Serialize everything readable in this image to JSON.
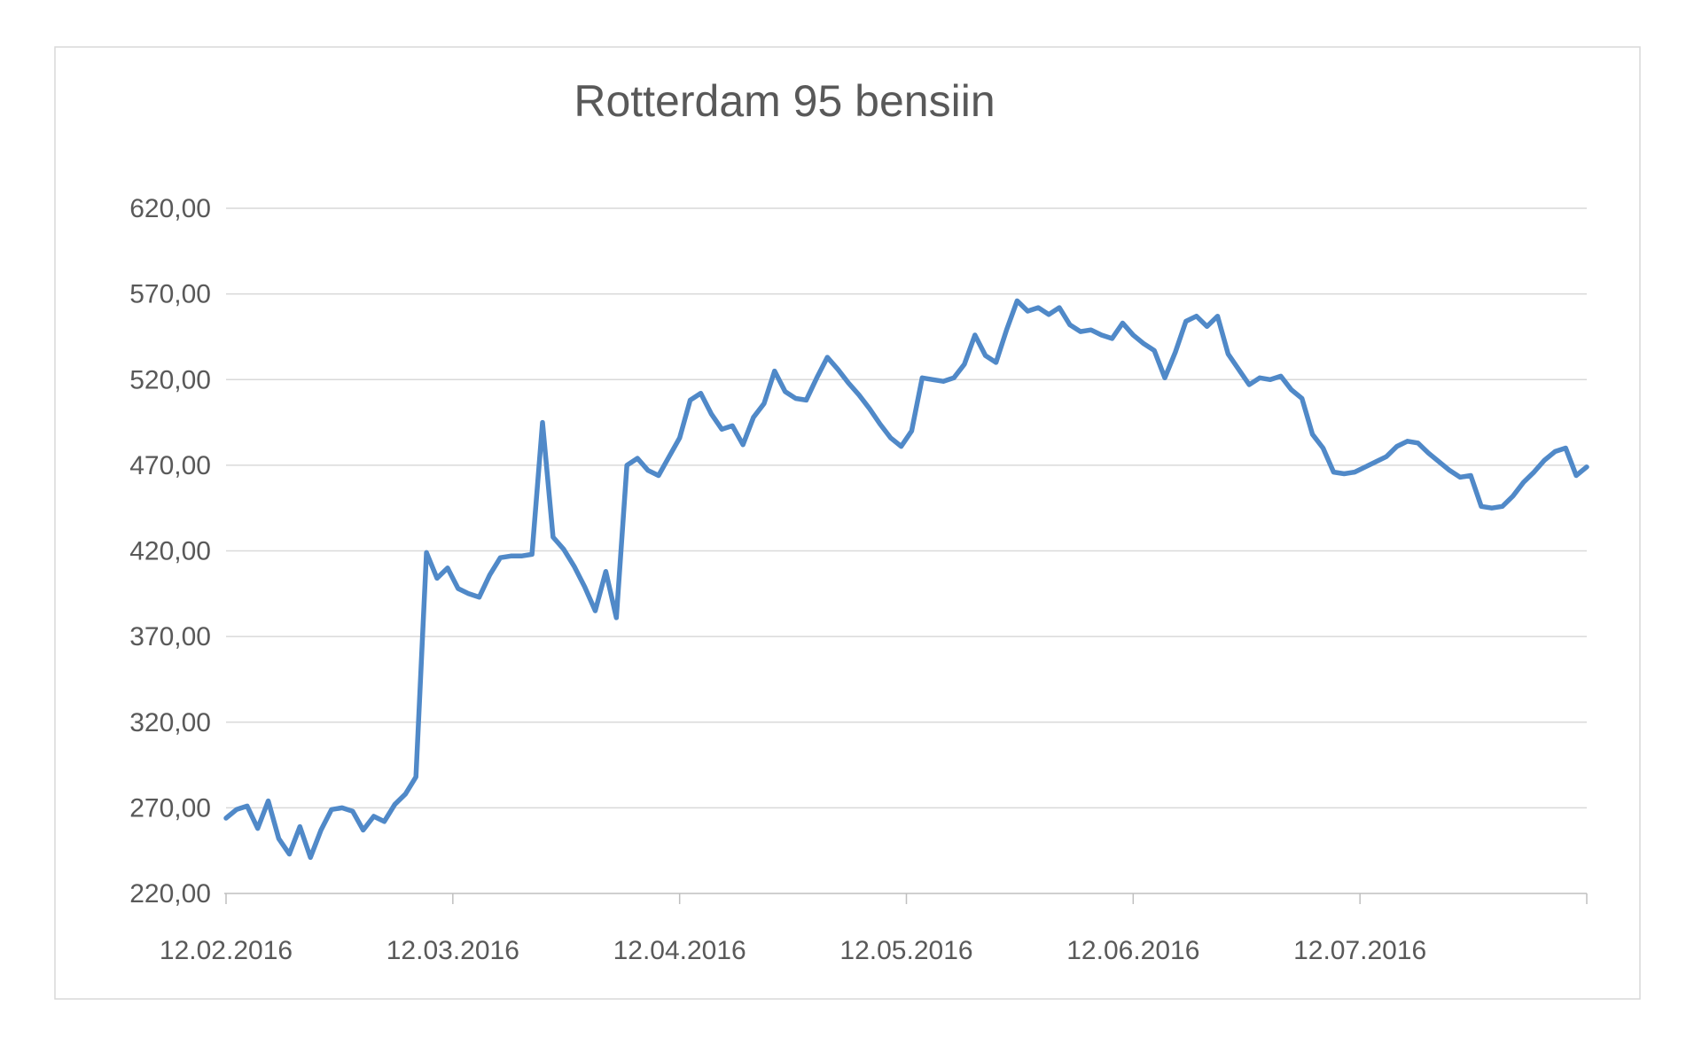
{
  "colors": {
    "line": "#5089c8",
    "grid": "#d9d9d9",
    "axis": "#bfbfbf",
    "text": "#595959",
    "frame": "#d9d9d9",
    "background": "#ffffff"
  },
  "chart_data": {
    "type": "line",
    "title": "Rotterdam 95 bensiin",
    "xlabel": "",
    "ylabel": "",
    "ylim": [
      220,
      620
    ],
    "y_tick_step": 50,
    "grid": true,
    "legend": false,
    "y_ticks": [
      620,
      570,
      520,
      470,
      420,
      370,
      320,
      270,
      220
    ],
    "y_tick_labels": [
      "620,00",
      "570,00",
      "520,00",
      "470,00",
      "420,00",
      "370,00",
      "320,00",
      "270,00",
      "220,00"
    ],
    "x_tick_labels": [
      "12.02.2016",
      "12.03.2016",
      "12.04.2016",
      "12.05.2016",
      "12.06.2016",
      "12.07.2016"
    ],
    "series": [
      {
        "name": "Rotterdam 95 bensiin",
        "values": [
          264,
          269,
          271,
          258,
          274,
          252,
          243,
          259,
          241,
          257,
          269,
          270,
          268,
          257,
          265,
          262,
          272,
          278,
          288,
          419,
          404,
          410,
          398,
          395,
          393,
          406,
          416,
          417,
          417,
          418,
          495,
          428,
          421,
          411,
          399,
          385,
          408,
          381,
          470,
          474,
          467,
          464,
          475,
          486,
          508,
          512,
          500,
          491,
          493,
          482,
          498,
          506,
          525,
          513,
          509,
          508,
          521,
          533,
          526,
          518,
          511,
          503,
          494,
          486,
          481,
          490,
          521,
          520,
          519,
          521,
          529,
          546,
          534,
          530,
          549,
          566,
          560,
          562,
          558,
          562,
          552,
          548,
          549,
          546,
          544,
          553,
          546,
          541,
          537,
          521,
          536,
          554,
          557,
          551,
          557,
          535,
          526,
          517,
          521,
          520,
          522,
          514,
          509,
          488,
          480,
          466,
          465,
          466,
          469,
          472,
          475,
          481,
          484,
          483,
          477,
          472,
          467,
          463,
          464,
          446,
          445,
          446,
          452,
          460,
          466,
          473,
          478,
          480,
          464,
          469
        ]
      }
    ]
  }
}
